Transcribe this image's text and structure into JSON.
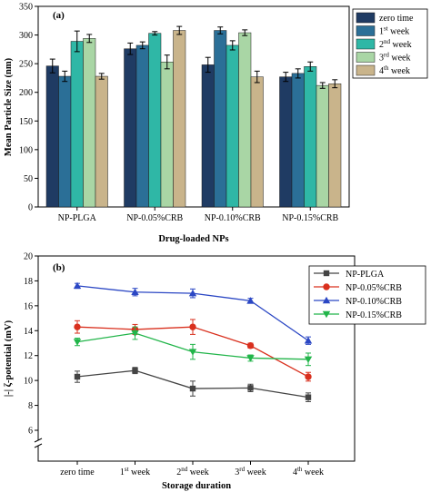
{
  "chart_data": [
    {
      "type": "bar",
      "panel_label": "(a)",
      "xlabel": "Drug-loaded NPs",
      "ylabel": "Mean Particle Size (nm)",
      "ylim": [
        0,
        350
      ],
      "yticks": [
        0,
        50,
        100,
        150,
        200,
        250,
        300,
        350
      ],
      "categories": [
        "NP-PLGA",
        "NP-0.05%CRB",
        "NP-0.10%CRB",
        "NP-0.15%CRB"
      ],
      "legend_position": "top-right",
      "series": [
        {
          "name": "zero time",
          "sup": "",
          "color": "#1f3b63",
          "values": [
            246,
            276,
            248,
            227
          ],
          "errors": [
            12,
            10,
            13,
            8
          ]
        },
        {
          "name": "1",
          "sup": "st",
          "suffix": " week",
          "color": "#2b6f97",
          "values": [
            228,
            282,
            308,
            233
          ],
          "errors": [
            9,
            6,
            6,
            8
          ]
        },
        {
          "name": "2",
          "sup": "nd",
          "suffix": " week",
          "color": "#2fb7a6",
          "values": [
            289,
            303,
            282,
            245
          ],
          "errors": [
            18,
            3,
            8,
            8
          ]
        },
        {
          "name": "3",
          "sup": "rd",
          "suffix": " week",
          "color": "#a9d6a5",
          "values": [
            294,
            253,
            304,
            212
          ],
          "errors": [
            7,
            12,
            5,
            5
          ]
        },
        {
          "name": "4",
          "sup": "th",
          "suffix": " week",
          "color": "#c9b48b",
          "values": [
            228,
            308,
            227,
            215
          ],
          "errors": [
            5,
            7,
            10,
            7
          ]
        }
      ]
    },
    {
      "type": "line",
      "panel_label": "(b)",
      "xlabel": "Storage duration",
      "ylabel": "|-| ζ-potential (mV)",
      "ylim": [
        6,
        20
      ],
      "yticks": [
        6,
        8,
        10,
        12,
        14,
        16,
        18,
        20
      ],
      "axis_break": true,
      "categories": [
        {
          "text": "zero time",
          "sup": "",
          "suffix": ""
        },
        {
          "text": "1",
          "sup": "st",
          "suffix": " week"
        },
        {
          "text": "2",
          "sup": "nd",
          "suffix": " week"
        },
        {
          "text": "3",
          "sup": "rd",
          "suffix": " week"
        },
        {
          "text": "4",
          "sup": "th",
          "suffix": " week"
        }
      ],
      "legend_position": "top-right",
      "series": [
        {
          "name": "NP-PLGA",
          "color": "#444444",
          "marker": "square",
          "values": [
            10.3,
            10.8,
            9.35,
            9.4,
            8.65
          ],
          "errors": [
            0.45,
            0.25,
            0.6,
            0.3,
            0.35
          ]
        },
        {
          "name": "NP-0.05%CRB",
          "color": "#d9301e",
          "marker": "circle",
          "values": [
            14.3,
            14.1,
            14.3,
            12.8,
            10.3
          ],
          "errors": [
            0.5,
            0.4,
            0.6,
            0.2,
            0.35
          ]
        },
        {
          "name": "NP-0.10%CRB",
          "color": "#2b47c4",
          "marker": "triangle-up",
          "values": [
            17.6,
            17.1,
            17.0,
            16.4,
            13.2
          ],
          "errors": [
            0.2,
            0.3,
            0.35,
            0.2,
            0.3
          ]
        },
        {
          "name": "NP-0.15%CRB",
          "color": "#22b54a",
          "marker": "triangle-down",
          "values": [
            13.1,
            13.8,
            12.3,
            11.8,
            11.7
          ],
          "errors": [
            0.3,
            0.5,
            0.6,
            0.25,
            0.5
          ]
        }
      ]
    }
  ]
}
